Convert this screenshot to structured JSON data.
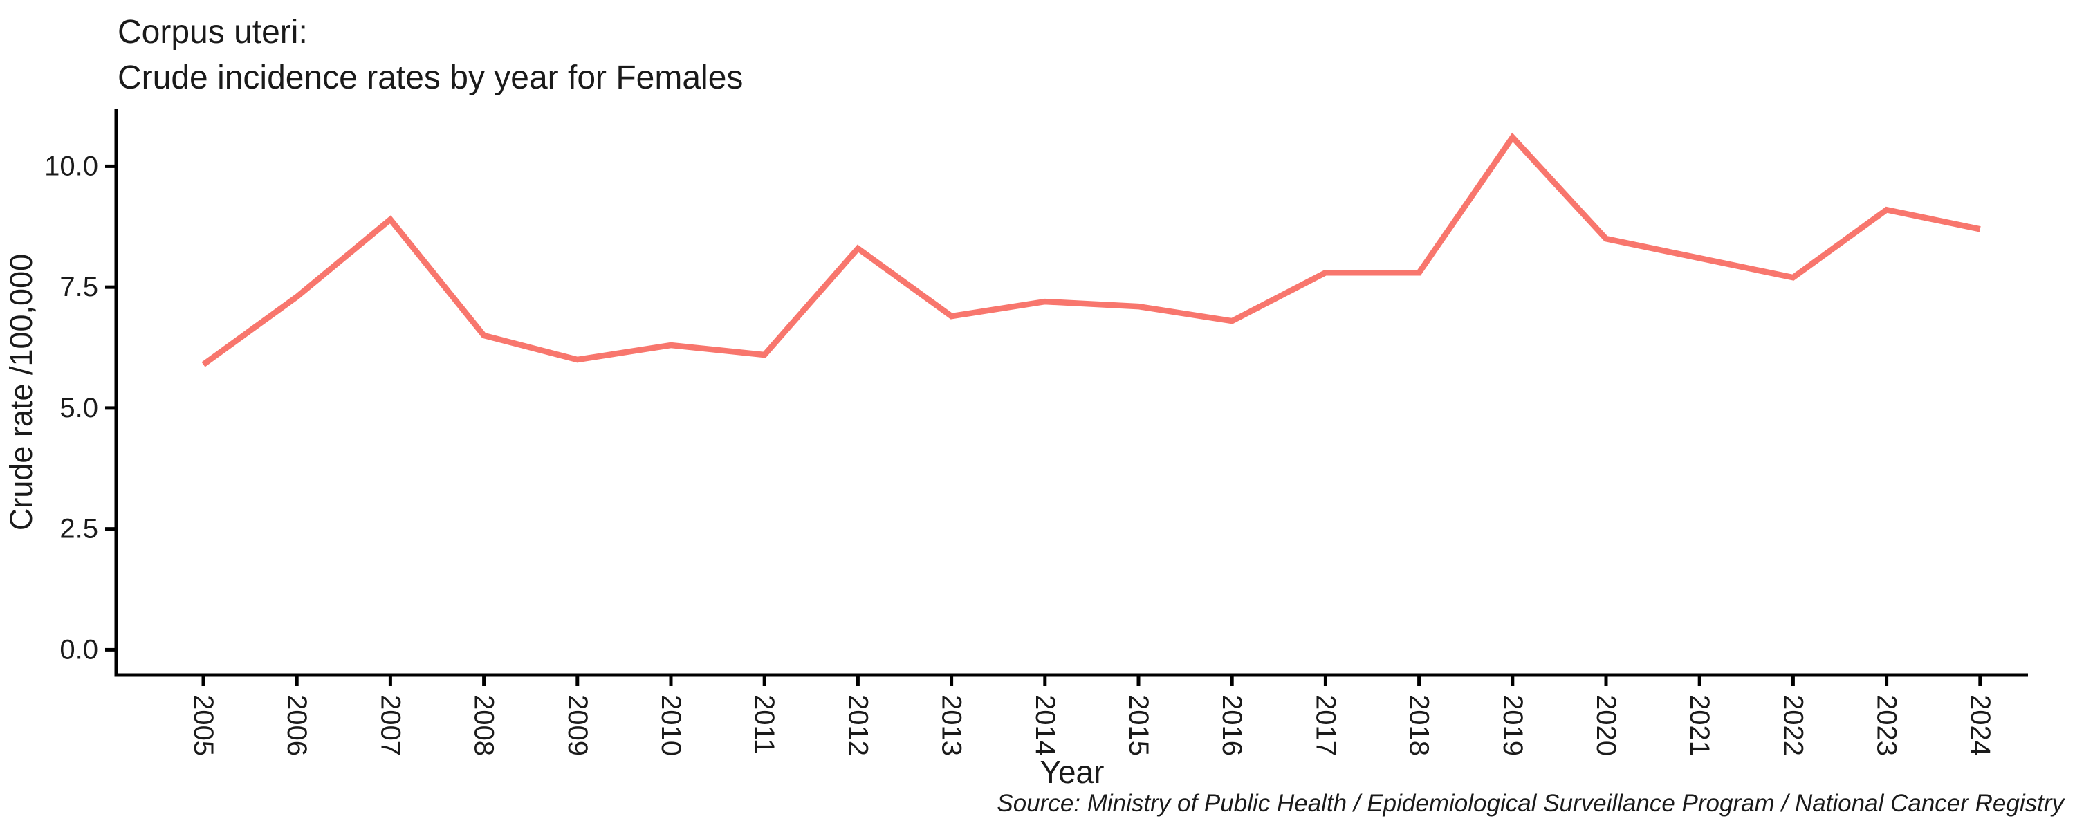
{
  "title": {
    "line1": "Corpus uteri:",
    "line2": "Crude incidence rates by year for Females"
  },
  "source_note": "Source: Ministry of Public Health / Epidemiological Surveillance Program / National Cancer Registry",
  "colors": {
    "line": "#F8766D",
    "axis": "#000000",
    "text": "#1a1a1a"
  },
  "chart_data": {
    "type": "line",
    "title": "Corpus uteri: Crude incidence rates by year for Females",
    "xlabel": "Year",
    "ylabel": "Crude rate /100,000",
    "series": [
      {
        "name": "Females",
        "color": "#F8766D",
        "x": [
          2005,
          2006,
          2007,
          2008,
          2009,
          2010,
          2011,
          2012,
          2013,
          2014,
          2015,
          2016,
          2017,
          2018,
          2019,
          2020,
          2021,
          2022,
          2023,
          2024
        ],
        "values": [
          5.9,
          7.3,
          8.9,
          6.5,
          6.0,
          6.3,
          6.1,
          8.3,
          6.9,
          7.2,
          7.1,
          6.8,
          7.8,
          7.8,
          10.6,
          8.5,
          8.1,
          7.7,
          9.1,
          8.7
        ]
      }
    ],
    "x_tick_labels": [
      "2005",
      "2006",
      "2007",
      "2008",
      "2009",
      "2010",
      "2011",
      "2012",
      "2013",
      "2014",
      "2015",
      "2016",
      "2017",
      "2018",
      "2019",
      "2020",
      "2021",
      "2022",
      "2023",
      "2024"
    ],
    "y_tick_labels": [
      "0.0",
      "2.5",
      "5.0",
      "7.5",
      "10.0"
    ],
    "y_tick_values": [
      0,
      2.5,
      5.0,
      7.5,
      10.0
    ],
    "ylim": [
      0,
      11.15
    ],
    "xlim": [
      2005,
      2024
    ],
    "grid": false,
    "legend": "none",
    "marker": "none"
  }
}
